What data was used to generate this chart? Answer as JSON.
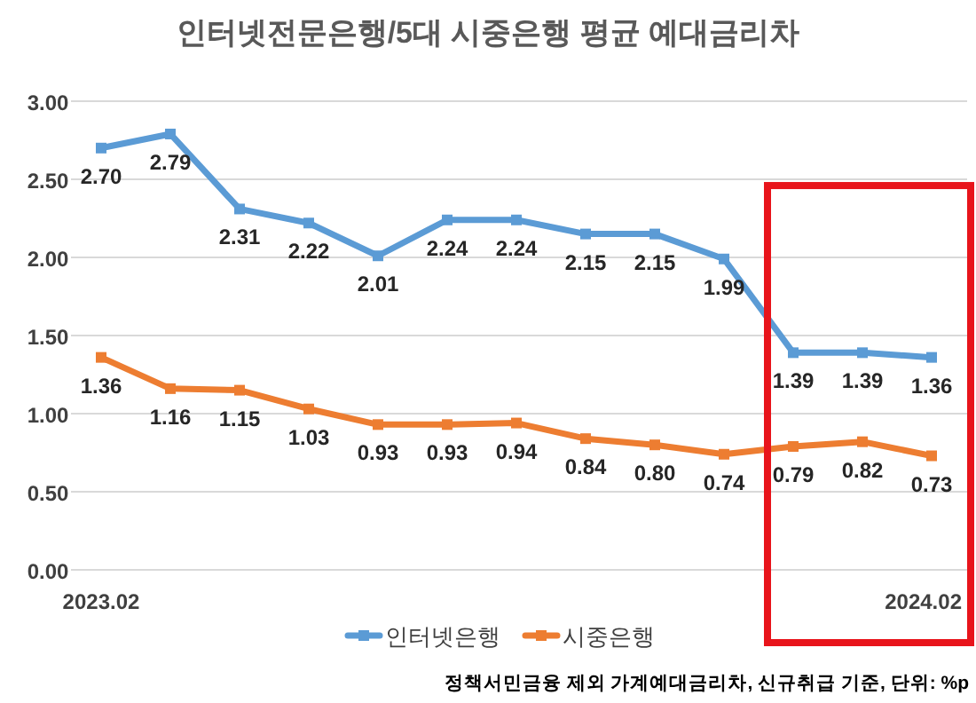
{
  "chart_data": {
    "type": "line",
    "title": "인터넷전문은행/5대 시중은행 평균 예대금리차",
    "categories": [
      "2023.02",
      null,
      null,
      null,
      null,
      null,
      null,
      null,
      null,
      null,
      null,
      null,
      "2024.02"
    ],
    "series": [
      {
        "name": "인터넷은행",
        "color": "#5b9bd5",
        "values": [
          2.7,
          2.79,
          2.31,
          2.22,
          2.01,
          2.24,
          2.24,
          2.15,
          2.15,
          1.99,
          1.39,
          1.39,
          1.36
        ],
        "value_labels": [
          "2.70",
          "2.79",
          "2.31",
          "2.22",
          "2.01",
          "2.24",
          "2.24",
          "2.15",
          "2.15",
          "1.99",
          "1.39",
          "1.39",
          "1.36"
        ]
      },
      {
        "name": "시중은행",
        "color": "#ed7d31",
        "values": [
          1.36,
          1.16,
          1.15,
          1.03,
          0.93,
          0.93,
          0.94,
          0.84,
          0.8,
          0.74,
          0.79,
          0.82,
          0.73
        ],
        "value_labels": [
          "1.36",
          "1.16",
          "1.15",
          "1.03",
          "0.93",
          "0.93",
          "0.94",
          "0.84",
          "0.80",
          "0.74",
          "0.79",
          "0.82",
          "0.73"
        ]
      }
    ],
    "ylim": [
      0,
      3
    ],
    "yticks": [
      {
        "value": 0,
        "label": "0.00"
      },
      {
        "value": 0.5,
        "label": "0.50"
      },
      {
        "value": 1,
        "label": "1.00"
      },
      {
        "value": 1.5,
        "label": "1.50"
      },
      {
        "value": 2,
        "label": "2.00"
      },
      {
        "value": 2.5,
        "label": "2.50"
      },
      {
        "value": 3,
        "label": "3.00"
      }
    ],
    "grid": "y",
    "legend": "bottom",
    "marker": "square",
    "line_style": "solid",
    "annotations": [
      "정책서민금융 제외 가계예대금리차, 신규취급 기준, 단위: %p"
    ]
  }
}
